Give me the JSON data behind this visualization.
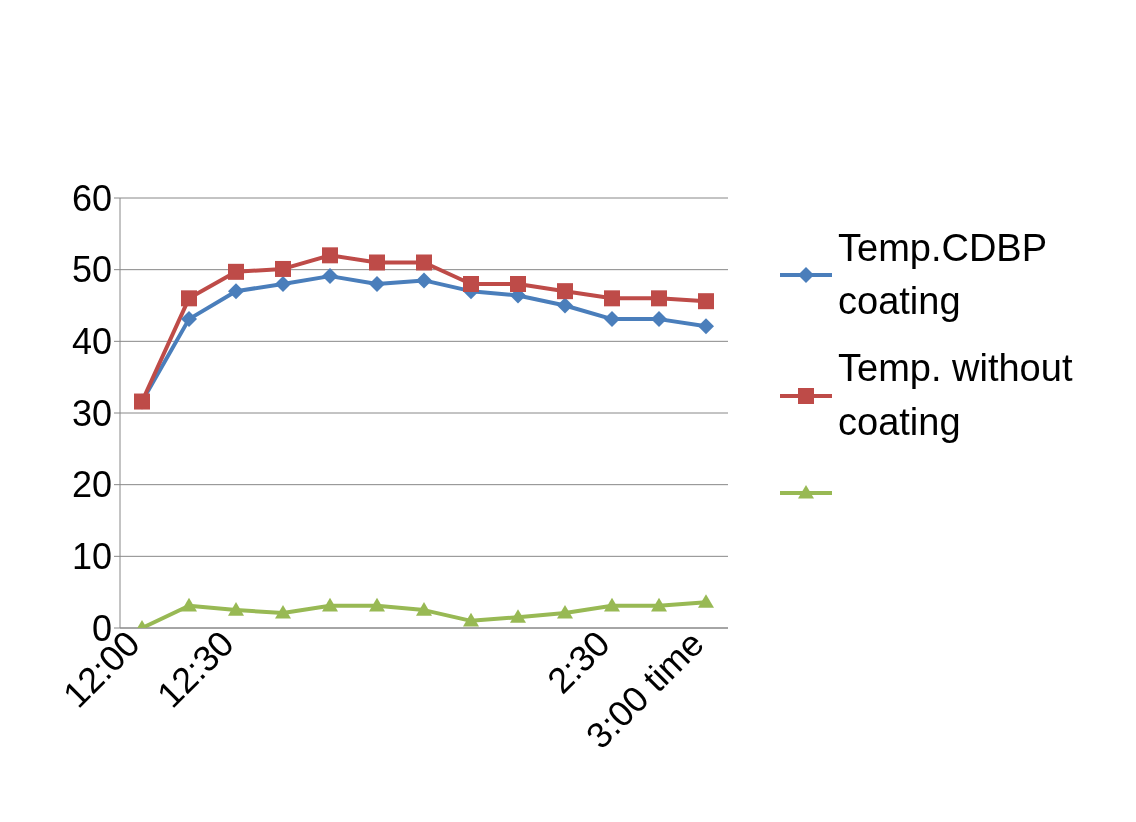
{
  "chart_data": {
    "type": "line",
    "categories": [
      "12:00",
      null,
      "12:30",
      null,
      null,
      null,
      null,
      null,
      null,
      null,
      "2:30",
      null,
      "3:00 time"
    ],
    "series": [
      {
        "name": "Temp.CDBP coating",
        "color": "#4a7ebb",
        "marker": "diamond",
        "values": [
          31.6,
          43.1,
          47.0,
          48.0,
          49.1,
          48.0,
          48.5,
          47.0,
          46.4,
          45.0,
          43.1,
          43.1,
          42.1
        ]
      },
      {
        "name": "Temp. without coating",
        "color": "#be4b48",
        "marker": "square",
        "values": [
          31.6,
          46.0,
          49.7,
          50.1,
          52.0,
          51.0,
          51.0,
          48.0,
          48.0,
          47.0,
          46.0,
          46.0,
          45.6
        ]
      },
      {
        "color": "#98b954",
        "marker": "triangle",
        "values": [
          0,
          3.1,
          2.5,
          2.1,
          3.1,
          3.1,
          2.5,
          1.0,
          1.5,
          2.1,
          3.1,
          3.1,
          3.6
        ]
      }
    ],
    "ylim": [
      0,
      60
    ],
    "yticks": [
      0,
      10,
      20,
      30,
      40,
      50,
      60
    ],
    "grid": "y",
    "legend": "right",
    "line_style": "solid"
  }
}
